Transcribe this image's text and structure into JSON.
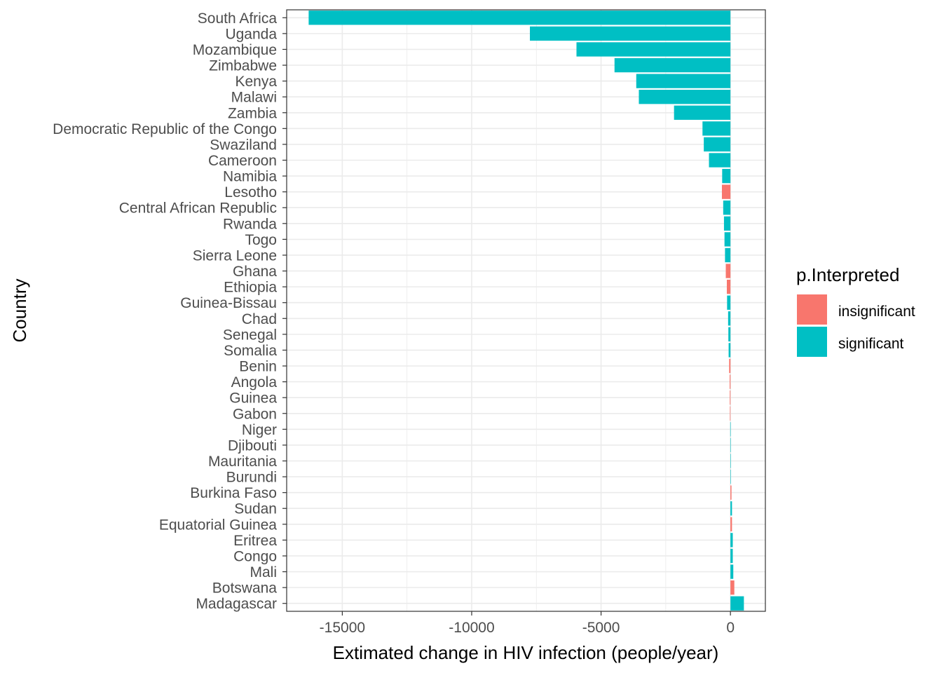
{
  "chart_data": {
    "type": "bar",
    "orientation": "horizontal",
    "xlabel": "Extimated change in HIV infection (people/year)",
    "ylabel": "Country",
    "xlim": [
      -17150,
      1350
    ],
    "xticks": [
      -15000,
      -10000,
      -5000,
      0
    ],
    "xtick_labels": [
      "-15000",
      "-10000",
      "-5000",
      "0"
    ],
    "grid": true,
    "legend": {
      "title": "p.Interpreted",
      "placement": "right",
      "entries": [
        {
          "label": "insignificant",
          "color": "#F8766D"
        },
        {
          "label": "significant",
          "color": "#00BFC4"
        }
      ]
    },
    "categories": [
      "South Africa",
      "Uganda",
      "Mozambique",
      "Zimbabwe",
      "Kenya",
      "Malawi",
      "Zambia",
      "Democratic Republic of the Congo",
      "Swaziland",
      "Cameroon",
      "Namibia",
      "Lesotho",
      "Central African Republic",
      "Rwanda",
      "Togo",
      "Sierra Leone",
      "Ghana",
      "Ethiopia",
      "Guinea-Bissau",
      "Chad",
      "Senegal",
      "Somalia",
      "Benin",
      "Angola",
      "Guinea",
      "Gabon",
      "Niger",
      "Djibouti",
      "Mauritania",
      "Burundi",
      "Burkina Faso",
      "Sudan",
      "Equatorial Guinea",
      "Eritrea",
      "Congo",
      "Mali",
      "Botswana",
      "Madagascar"
    ],
    "values": [
      -16300,
      -7750,
      -5950,
      -4480,
      -3640,
      -3540,
      -2180,
      -1080,
      -1030,
      -830,
      -320,
      -330,
      -280,
      -250,
      -230,
      -210,
      -180,
      -140,
      -130,
      -90,
      -80,
      -70,
      -50,
      -30,
      -25,
      -20,
      -8,
      -6,
      -5,
      -3,
      40,
      60,
      60,
      90,
      90,
      110,
      150,
      520
    ],
    "significance": [
      "significant",
      "significant",
      "significant",
      "significant",
      "significant",
      "significant",
      "significant",
      "significant",
      "significant",
      "significant",
      "significant",
      "insignificant",
      "significant",
      "significant",
      "significant",
      "significant",
      "insignificant",
      "insignificant",
      "significant",
      "significant",
      "significant",
      "significant",
      "insignificant",
      "insignificant",
      "insignificant",
      "insignificant",
      "significant",
      "significant",
      "significant",
      "significant",
      "insignificant",
      "significant",
      "insignificant",
      "significant",
      "significant",
      "significant",
      "insignificant",
      "significant"
    ],
    "colors": {
      "significant": "#00BFC4",
      "insignificant": "#F8766D",
      "grid": "#EBEBEB",
      "panel_border": "#333333",
      "tick": "#333333"
    }
  }
}
